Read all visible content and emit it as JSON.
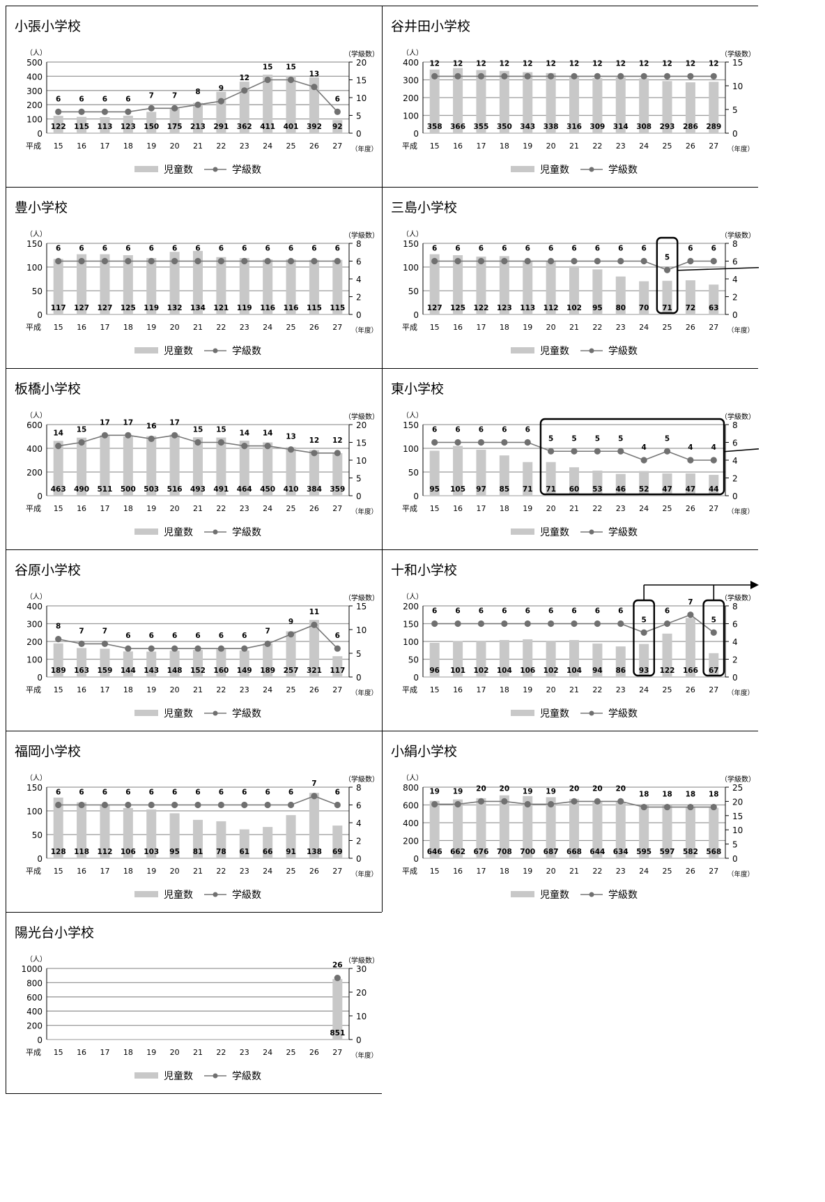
{
  "common": {
    "y_left_unit": "（人）",
    "y_right_unit": "（学級数）",
    "x_prefix": "平成",
    "x_unit": "（年度）",
    "legend_bar": "児童数",
    "legend_line": "学級数",
    "bar_color": "#c8c8c8",
    "line_color": "#777777",
    "point_color": "#707070",
    "grid_color": "#999999"
  },
  "chart_data": [
    {
      "type": "bar+line",
      "title": "小張小学校",
      "categories": [
        "15",
        "16",
        "17",
        "18",
        "19",
        "20",
        "21",
        "22",
        "23",
        "24",
        "25",
        "26",
        "27"
      ],
      "series": [
        {
          "name": "児童数",
          "values": [
            122,
            115,
            113,
            123,
            150,
            175,
            213,
            291,
            362,
            411,
            401,
            392,
            92
          ]
        },
        {
          "name": "学級数",
          "values": [
            6,
            6,
            6,
            6,
            7,
            7,
            8,
            9,
            12,
            15,
            15,
            13,
            6
          ]
        }
      ],
      "y_left": {
        "min": 0,
        "max": 500,
        "ticks": [
          0,
          100,
          200,
          300,
          400,
          500
        ]
      },
      "y_right": {
        "min": 0,
        "max": 20,
        "ticks": [
          0,
          5,
          10,
          15,
          20
        ]
      }
    },
    {
      "type": "bar+line",
      "title": "谷井田小学校",
      "categories": [
        "15",
        "16",
        "17",
        "18",
        "19",
        "20",
        "21",
        "22",
        "23",
        "24",
        "25",
        "26",
        "27"
      ],
      "series": [
        {
          "name": "児童数",
          "values": [
            358,
            366,
            355,
            350,
            343,
            338,
            316,
            309,
            314,
            308,
            293,
            286,
            289
          ]
        },
        {
          "name": "学級数",
          "values": [
            12,
            12,
            12,
            12,
            12,
            12,
            12,
            12,
            12,
            12,
            12,
            12,
            12
          ]
        }
      ],
      "y_left": {
        "min": 0,
        "max": 400,
        "ticks": [
          0,
          100,
          200,
          300,
          400
        ]
      },
      "y_right": {
        "min": 0,
        "max": 15,
        "ticks": [
          0,
          5,
          10,
          15
        ]
      }
    },
    {
      "type": "bar+line",
      "title": "豊小学校",
      "categories": [
        "15",
        "16",
        "17",
        "18",
        "19",
        "20",
        "21",
        "22",
        "23",
        "24",
        "25",
        "26",
        "27"
      ],
      "series": [
        {
          "name": "児童数",
          "values": [
            117,
            127,
            127,
            125,
            119,
            132,
            134,
            121,
            119,
            116,
            116,
            115,
            115
          ]
        },
        {
          "name": "学級数",
          "values": [
            6,
            6,
            6,
            6,
            6,
            6,
            6,
            6,
            6,
            6,
            6,
            6,
            6
          ]
        }
      ],
      "y_left": {
        "min": 0,
        "max": 150,
        "ticks": [
          0,
          50,
          100,
          150
        ]
      },
      "y_right": {
        "min": 0,
        "max": 8,
        "ticks": [
          0,
          2,
          4,
          6,
          8
        ]
      }
    },
    {
      "type": "bar+line",
      "title": "三島小学校",
      "categories": [
        "15",
        "16",
        "17",
        "18",
        "19",
        "20",
        "21",
        "22",
        "23",
        "24",
        "25",
        "26",
        "27"
      ],
      "series": [
        {
          "name": "児童数",
          "values": [
            127,
            125,
            122,
            123,
            113,
            112,
            102,
            95,
            80,
            70,
            71,
            72,
            63
          ]
        },
        {
          "name": "学級数",
          "values": [
            6,
            6,
            6,
            6,
            6,
            6,
            6,
            6,
            6,
            6,
            5,
            6,
            6
          ]
        }
      ],
      "y_left": {
        "min": 0,
        "max": 150,
        "ticks": [
          0,
          50,
          100,
          150
        ]
      },
      "y_right": {
        "min": 0,
        "max": 8,
        "ticks": [
          0,
          2,
          4,
          6,
          8
        ]
      },
      "highlight": [
        [
          10,
          10
        ]
      ],
      "arrow_right": true
    },
    {
      "type": "bar+line",
      "title": "板橋小学校",
      "categories": [
        "15",
        "16",
        "17",
        "18",
        "19",
        "20",
        "21",
        "22",
        "23",
        "24",
        "25",
        "26",
        "27"
      ],
      "series": [
        {
          "name": "児童数",
          "values": [
            463,
            490,
            511,
            500,
            503,
            516,
            493,
            491,
            464,
            450,
            410,
            384,
            359
          ]
        },
        {
          "name": "学級数",
          "values": [
            14,
            15,
            17,
            17,
            16,
            17,
            15,
            15,
            14,
            14,
            13,
            12,
            12
          ]
        }
      ],
      "y_left": {
        "min": 0,
        "max": 600,
        "ticks": [
          0,
          200,
          400,
          600
        ]
      },
      "y_right": {
        "min": 0,
        "max": 20,
        "ticks": [
          0,
          5,
          10,
          15,
          20
        ]
      }
    },
    {
      "type": "bar+line",
      "title": "東小学校",
      "categories": [
        "15",
        "16",
        "17",
        "18",
        "19",
        "20",
        "21",
        "22",
        "23",
        "24",
        "25",
        "26",
        "27"
      ],
      "series": [
        {
          "name": "児童数",
          "values": [
            95,
            105,
            97,
            85,
            71,
            71,
            60,
            53,
            46,
            52,
            47,
            47,
            44
          ]
        },
        {
          "name": "学級数",
          "values": [
            6,
            6,
            6,
            6,
            6,
            5,
            5,
            5,
            5,
            4,
            5,
            4,
            4
          ]
        }
      ],
      "y_left": {
        "min": 0,
        "max": 150,
        "ticks": [
          0,
          50,
          100,
          150
        ]
      },
      "y_right": {
        "min": 0,
        "max": 8,
        "ticks": [
          0,
          2,
          4,
          6,
          8
        ]
      },
      "highlight": [
        [
          5,
          12
        ]
      ],
      "arrow_right": true
    },
    {
      "type": "bar+line",
      "title": "谷原小学校",
      "categories": [
        "15",
        "16",
        "17",
        "18",
        "19",
        "20",
        "21",
        "22",
        "23",
        "24",
        "25",
        "26",
        "27"
      ],
      "series": [
        {
          "name": "児童数",
          "values": [
            189,
            163,
            159,
            144,
            143,
            148,
            152,
            160,
            149,
            189,
            257,
            321,
            117
          ]
        },
        {
          "name": "学級数",
          "values": [
            8,
            7,
            7,
            6,
            6,
            6,
            6,
            6,
            6,
            7,
            9,
            11,
            6
          ]
        }
      ],
      "y_left": {
        "min": 0,
        "max": 400,
        "ticks": [
          0,
          100,
          200,
          300,
          400
        ]
      },
      "y_right": {
        "min": 0,
        "max": 15,
        "ticks": [
          0,
          5,
          10,
          15
        ]
      }
    },
    {
      "type": "bar+line",
      "title": "十和小学校",
      "categories": [
        "15",
        "16",
        "17",
        "18",
        "19",
        "20",
        "21",
        "22",
        "23",
        "24",
        "25",
        "26",
        "27"
      ],
      "series": [
        {
          "name": "児童数",
          "values": [
            96,
            101,
            102,
            104,
            106,
            102,
            104,
            94,
            86,
            93,
            122,
            166,
            67
          ]
        },
        {
          "name": "学級数",
          "values": [
            6,
            6,
            6,
            6,
            6,
            6,
            6,
            6,
            6,
            5,
            6,
            7,
            5
          ]
        }
      ],
      "y_left": {
        "min": 0,
        "max": 200,
        "ticks": [
          0,
          50,
          100,
          150,
          200
        ]
      },
      "y_right": {
        "min": 0,
        "max": 8,
        "ticks": [
          0,
          2,
          4,
          6,
          8
        ]
      },
      "highlight": [
        [
          9,
          9
        ],
        [
          12,
          12
        ]
      ],
      "arrow_top": true
    },
    {
      "type": "bar+line",
      "title": "福岡小学校",
      "categories": [
        "15",
        "16",
        "17",
        "18",
        "19",
        "20",
        "21",
        "22",
        "23",
        "24",
        "25",
        "26",
        "27"
      ],
      "series": [
        {
          "name": "児童数",
          "values": [
            128,
            118,
            112,
            106,
            103,
            95,
            81,
            78,
            61,
            66,
            91,
            138,
            69
          ]
        },
        {
          "name": "学級数",
          "values": [
            6,
            6,
            6,
            6,
            6,
            6,
            6,
            6,
            6,
            6,
            6,
            7,
            6
          ]
        }
      ],
      "y_left": {
        "min": 0,
        "max": 150,
        "ticks": [
          0,
          50,
          100,
          150
        ]
      },
      "y_right": {
        "min": 0,
        "max": 8,
        "ticks": [
          0,
          2,
          4,
          6,
          8
        ]
      }
    },
    {
      "type": "bar+line",
      "title": "小絹小学校",
      "categories": [
        "15",
        "16",
        "17",
        "18",
        "19",
        "20",
        "21",
        "22",
        "23",
        "24",
        "25",
        "26",
        "27"
      ],
      "series": [
        {
          "name": "児童数",
          "values": [
            646,
            662,
            676,
            708,
            700,
            687,
            668,
            644,
            634,
            595,
            597,
            582,
            568
          ]
        },
        {
          "name": "学級数",
          "values": [
            19,
            19,
            20,
            20,
            19,
            19,
            20,
            20,
            20,
            18,
            18,
            18,
            18
          ]
        }
      ],
      "y_left": {
        "min": 0,
        "max": 800,
        "ticks": [
          0,
          200,
          400,
          600,
          800
        ]
      },
      "y_right": {
        "min": 0,
        "max": 25,
        "ticks": [
          0,
          5,
          10,
          15,
          20,
          25
        ]
      }
    },
    {
      "type": "bar+line",
      "title": "陽光台小学校",
      "categories": [
        "15",
        "16",
        "17",
        "18",
        "19",
        "20",
        "21",
        "22",
        "23",
        "24",
        "25",
        "26",
        "27"
      ],
      "series": [
        {
          "name": "児童数",
          "values": [
            null,
            null,
            null,
            null,
            null,
            null,
            null,
            null,
            null,
            null,
            null,
            null,
            851
          ]
        },
        {
          "name": "学級数",
          "values": [
            null,
            null,
            null,
            null,
            null,
            null,
            null,
            null,
            null,
            null,
            null,
            null,
            26
          ]
        }
      ],
      "y_left": {
        "min": 0,
        "max": 1000,
        "ticks": [
          0,
          200,
          400,
          600,
          800,
          1000
        ]
      },
      "y_right": {
        "min": 0,
        "max": 30,
        "ticks": [
          0,
          10,
          20,
          30
        ]
      }
    }
  ]
}
